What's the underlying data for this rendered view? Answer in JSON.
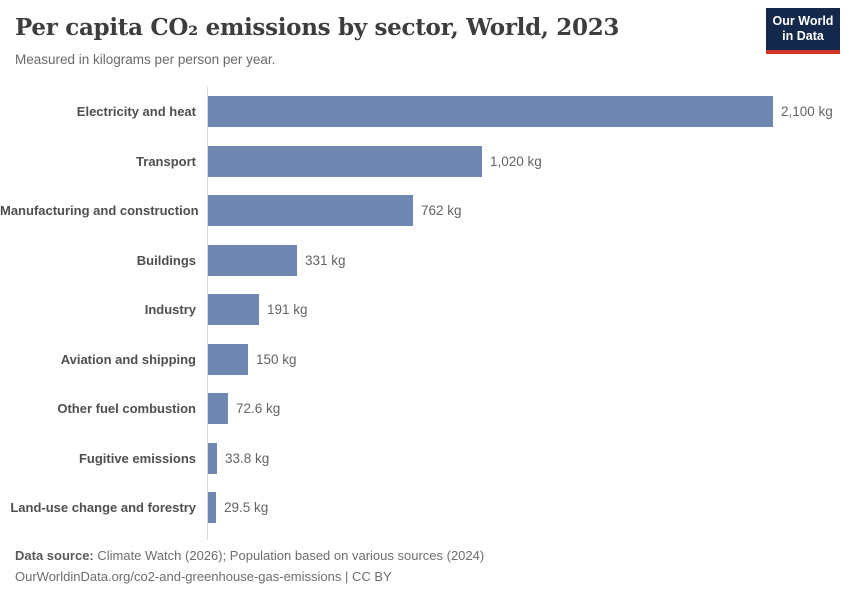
{
  "header": {
    "title": "Per capita CO₂ emissions by sector, World, 2023",
    "subtitle": "Measured in kilograms per person per year.",
    "logo": {
      "line1": "Our World",
      "line2": "in Data"
    }
  },
  "chart_data": {
    "type": "bar",
    "orientation": "horizontal",
    "title": "Per capita CO₂ emissions by sector, World, 2023",
    "subtitle": "Measured in kilograms per person per year.",
    "unit": "kg",
    "xlabel": "",
    "ylabel": "",
    "xlim": [
      0,
      2100
    ],
    "grid": false,
    "legend": "none",
    "categories": [
      "Electricity and heat",
      "Transport",
      "Manufacturing and construction",
      "Buildings",
      "Industry",
      "Aviation and shipping",
      "Other fuel combustion",
      "Fugitive emissions",
      "Land-use change and forestry"
    ],
    "values": [
      2100,
      1020,
      762,
      331,
      191,
      150,
      72.6,
      33.8,
      29.5
    ],
    "value_labels": [
      "2,100 kg",
      "1,020 kg",
      "762 kg",
      "331 kg",
      "191 kg",
      "150 kg",
      "72.6 kg",
      "33.8 kg",
      "29.5 kg"
    ],
    "bar_color": "#6e87b0",
    "axis_color": "#dadada"
  },
  "footer": {
    "source_label": "Data source:",
    "source_text": " Climate Watch (2026); Population based on various sources (2024)",
    "link_text": "OurWorldinData.org/co2-and-greenhouse-gas-emissions",
    "license_text": " | CC BY"
  },
  "colors": {
    "bar": "#6e87b0",
    "logo_navy": "#14284b",
    "logo_red": "#cf342c",
    "title_text": "#3d3d3d",
    "category_label": "#4f4f4f",
    "value_label": "#636363"
  }
}
